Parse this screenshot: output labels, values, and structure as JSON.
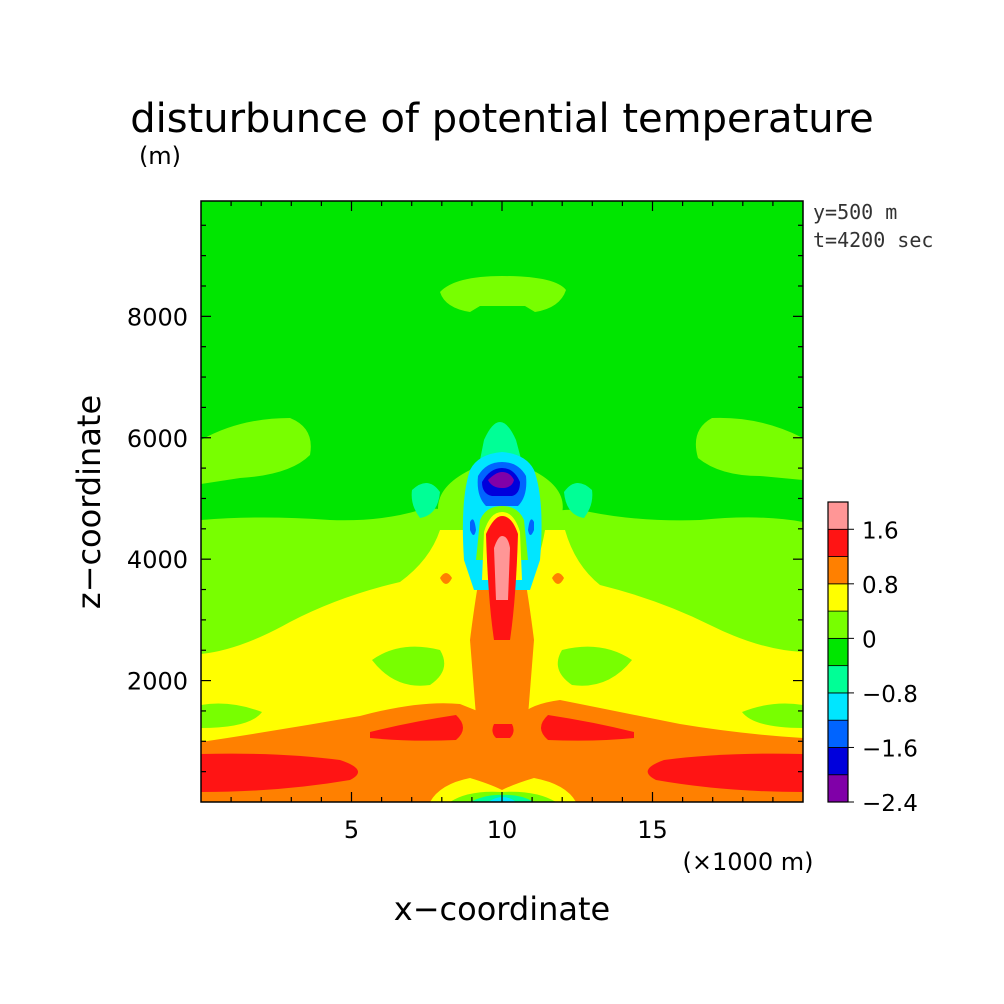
{
  "chart_data": {
    "type": "heatmap",
    "title": "disturbunce of potential temperature",
    "y_unit": "(m)",
    "xlabel": "x−coordinate",
    "ylabel": "z−coordinate",
    "x_unit": "(×1000 m)",
    "annotations": [
      "y=500 m",
      "t=4200 sec"
    ],
    "xlim": [
      0,
      20
    ],
    "ylim": [
      0,
      9900
    ],
    "x_ticks": [
      5,
      10,
      15
    ],
    "y_ticks": [
      2000,
      4000,
      6000,
      8000
    ],
    "x_tick_labels": [
      "5",
      "10",
      "15"
    ],
    "y_tick_labels": [
      "2000",
      "4000",
      "6000",
      "8000"
    ],
    "colorbar": {
      "levels": [
        -2.4,
        -2.0,
        -1.6,
        -1.2,
        -0.8,
        -0.4,
        0,
        0.4,
        0.8,
        1.2,
        1.6,
        2.0
      ],
      "tick_labels": [
        "1.6",
        "0.8",
        "0",
        "−0.8",
        "−1.6",
        "−2.4"
      ],
      "colors": [
        "#8000a8",
        "#0000dc",
        "#0064ff",
        "#00e6ff",
        "#00ff96",
        "#00e600",
        "#78ff00",
        "#ffff00",
        "#ff8000",
        "#ff1414",
        "#ff9696"
      ]
    },
    "field_description_levels": {
      "background": 0.2,
      "surface_band": 1.4,
      "plume_core": 1.8
    }
  }
}
